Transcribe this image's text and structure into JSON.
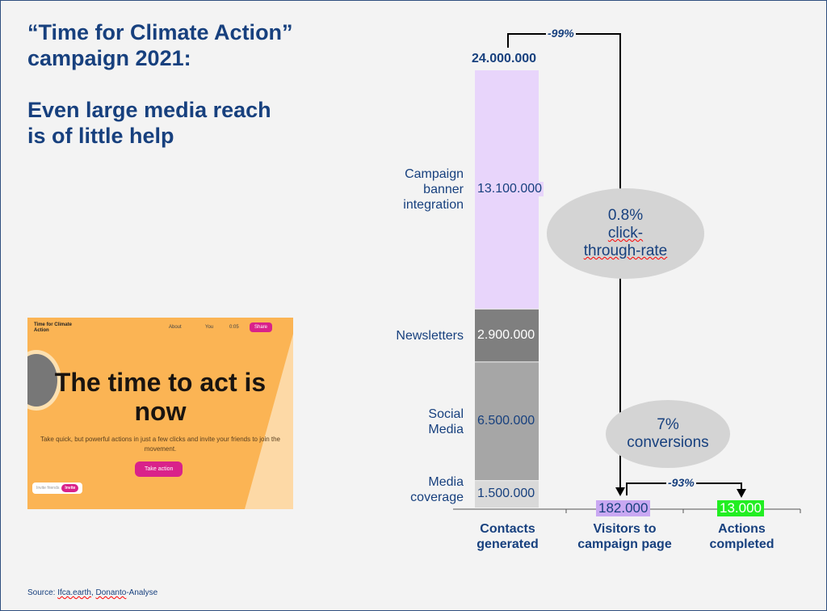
{
  "title": {
    "line1": "“Time for Climate Action”",
    "line2": "campaign 2021:",
    "line3": "Even large media reach",
    "line4": "is of little help"
  },
  "source": {
    "prefix": "Source: ",
    "s1": "Ifca.earth",
    "sep": ", ",
    "s2": "Donanto",
    "rest": "-Analyse"
  },
  "screenshot": {
    "brand": "Time for Climate Action",
    "nav_about": "About",
    "nav_you": "You",
    "timer": "0:05",
    "share": "Share",
    "hero": "The time to act is now",
    "subtitle": "Take quick, but powerful actions in just a few clicks and invite your friends to join the movement.",
    "cta": "Take action",
    "invite_text": "Invite friends",
    "invite_btn": "Invite"
  },
  "chart_data": {
    "type": "bar",
    "categories": [
      "Contacts generated",
      "Visitors to campaign page",
      "Actions completed"
    ],
    "stack": [
      {
        "name": "Media coverage",
        "value": 1500000,
        "label": "1.500.000",
        "color": "#d9d9d9",
        "text": "#17407e"
      },
      {
        "name": "Social Media",
        "value": 6500000,
        "label": "6.500.000",
        "color": "#a6a6a6",
        "text": "#17407e"
      },
      {
        "name": "Newsletters",
        "value": 2900000,
        "label": "2.900.000",
        "color": "#7f7f7f",
        "text": "#ffffff"
      },
      {
        "name": "Campaign banner integration",
        "value": 13100000,
        "label": "13.100.000",
        "color": "#e8d5fb",
        "text": "#17407e"
      }
    ],
    "total_label": "24.000.000",
    "visitors": {
      "value": 182000,
      "label": "182.000",
      "color": "#c9a8f2"
    },
    "actions": {
      "value": 13000,
      "label": "13.000",
      "color": "#22ee22"
    },
    "drop1": "-99%",
    "drop2": "-93%",
    "ctr": {
      "l1": "0.8%",
      "l2": "click-",
      "l3": "through-rate"
    },
    "conv": {
      "l1": "7%",
      "l2": "conversions"
    }
  }
}
